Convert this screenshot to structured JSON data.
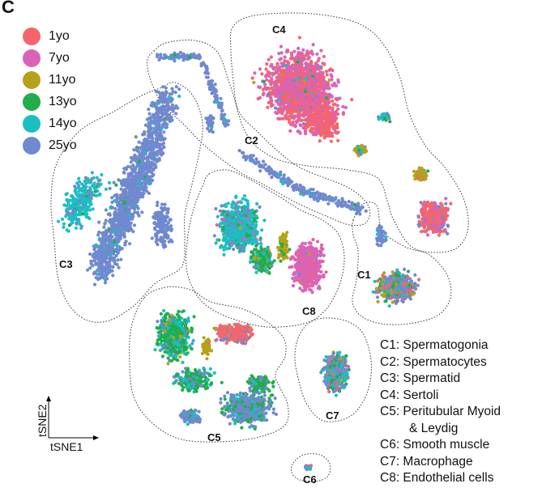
{
  "panel_label": "C",
  "chart_data": {
    "type": "scatter",
    "xlabel": "tSNE1",
    "ylabel": "tSNE2",
    "grid": false,
    "legend_placement": "top-left",
    "series": [
      {
        "name": "1yo",
        "color": "#f5656b"
      },
      {
        "name": "7yo",
        "color": "#db63b5"
      },
      {
        "name": "11yo",
        "color": "#b5a21a"
      },
      {
        "name": "13yo",
        "color": "#20ad4a"
      },
      {
        "name": "14yo",
        "color": "#1bbfc2"
      },
      {
        "name": "25yo",
        "color": "#7089cf"
      }
    ],
    "clusters": [
      {
        "label": "C1",
        "name": "Spermatogonia"
      },
      {
        "label": "C2",
        "name": "Spermatocytes"
      },
      {
        "label": "C3",
        "name": "Spermatid"
      },
      {
        "label": "C4",
        "name": "Sertoli"
      },
      {
        "label": "C5",
        "name": "Peritubular Myoid",
        "name_line2": "& Leydig"
      },
      {
        "label": "C6",
        "name": "Smooth muscle"
      },
      {
        "label": "C7",
        "name": "Macrophage"
      },
      {
        "label": "C8",
        "name": "Endothelial cells"
      }
    ]
  }
}
